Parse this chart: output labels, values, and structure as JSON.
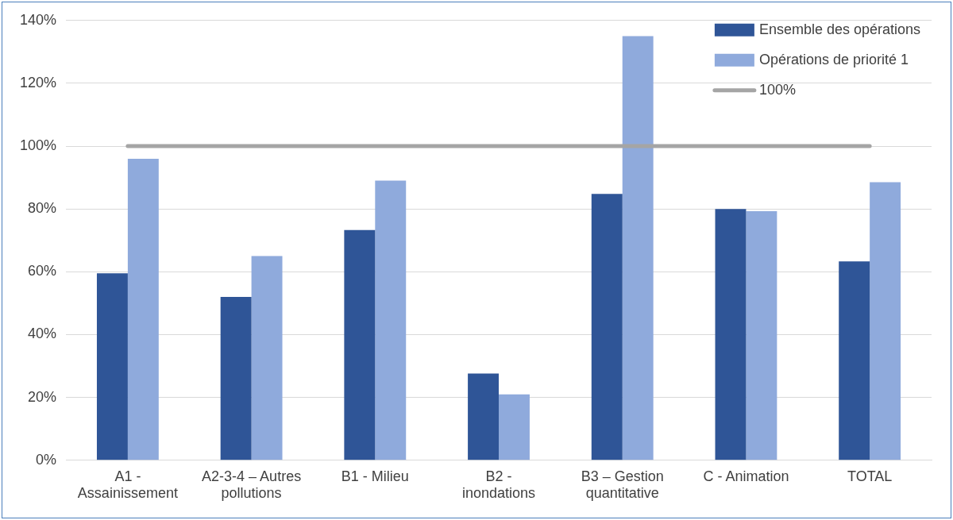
{
  "chart_data": {
    "type": "bar",
    "categories": [
      "A1 - Assainissement",
      "A2-3-4 – Autres pollutions",
      "B1 - Milieu",
      "B2 - inondations",
      "B3 – Gestion quantitative",
      "C - Animation",
      "TOTAL"
    ],
    "series": [
      {
        "name": "Ensemble des opérations",
        "color": "#2f5597",
        "values": [
          59.5,
          52,
          73.3,
          27.6,
          84.8,
          80,
          63.3
        ]
      },
      {
        "name": "Opérations de priorité 1",
        "color": "#8faadc",
        "values": [
          96,
          65,
          89,
          21,
          135,
          79.3,
          88.5
        ]
      },
      {
        "name": "100%",
        "type": "line",
        "color": "#a5a5a5",
        "values": [
          100,
          100,
          100,
          100,
          100,
          100,
          100
        ]
      }
    ],
    "ylim": [
      0,
      140
    ],
    "yticks": [
      {
        "value": 0,
        "label": "0%"
      },
      {
        "value": 20,
        "label": "20%"
      },
      {
        "value": 40,
        "label": "40%"
      },
      {
        "value": 60,
        "label": "60%"
      },
      {
        "value": 80,
        "label": "80%"
      },
      {
        "value": 100,
        "label": "100%"
      },
      {
        "value": 120,
        "label": "120%"
      },
      {
        "value": 140,
        "label": "140%"
      }
    ],
    "grid": "y",
    "legend": "top right",
    "marker": "none"
  }
}
